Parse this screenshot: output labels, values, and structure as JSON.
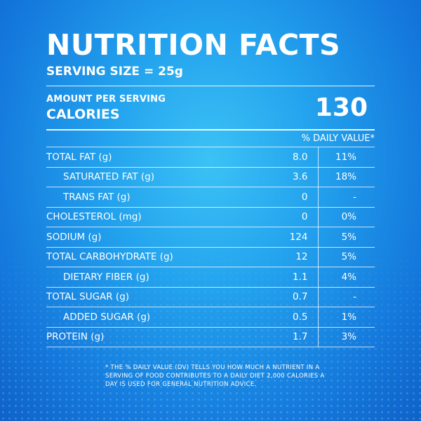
{
  "label": {
    "title": "NUTRITION FACTS",
    "serving_size": "SERVING SIZE = 25g",
    "amount_per_serving": "AMOUNT PER SERVING",
    "calories_label": "CALORIES",
    "calories_value": "130",
    "daily_value_header": "% DAILY VALUE*"
  },
  "nutrients": [
    {
      "name": "TOTAL FAT (g)",
      "amount": "8.0",
      "dv": "11%"
    },
    {
      "name": "SATURATED FAT (g)",
      "amount": "3.6",
      "dv": "18%"
    },
    {
      "name": "TRANS FAT (g)",
      "amount": "0",
      "dv": "-"
    },
    {
      "name": "CHOLESTEROL (mg)",
      "amount": "0",
      "dv": "0%"
    },
    {
      "name": "SODIUM (g)",
      "amount": "124",
      "dv": "5%"
    },
    {
      "name": "TOTAL CARBOHYDRATE (g)",
      "amount": "12",
      "dv": "5%"
    },
    {
      "name": "DIETARY FIBER (g)",
      "amount": "1.1",
      "dv": "4%"
    },
    {
      "name": "TOTAL SUGAR (g)",
      "amount": "0.7",
      "dv": "-"
    },
    {
      "name": "ADDED SUGAR (g)",
      "amount": "0.5",
      "dv": "1%"
    },
    {
      "name": "PROTEIN (g)",
      "amount": "1.7",
      "dv": "3%"
    }
  ],
  "footnote": "* THE % DAILY VALUE (DV) TELLS YOU HOW MUCH A NUTRIENT IN A SERVING OF FOOD CONTRIBUTES TO A DAILY DIET 2,000 CALORIES A DAY IS USED FOR GENERAL NUTRITION ADVICE.",
  "colors": {
    "background_center": "#3cc2f5",
    "background_edge": "#0e62c8",
    "text": "#ffffff"
  }
}
